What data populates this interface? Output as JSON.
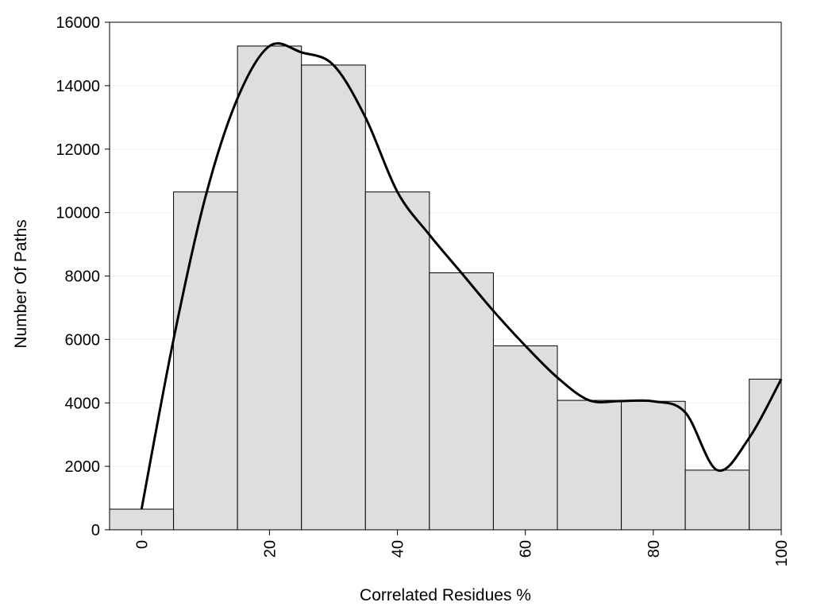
{
  "chart_data": {
    "type": "bar",
    "xlabel": "Correlated Residues %",
    "ylabel": "Number Of Paths",
    "xlim": [
      -5,
      100
    ],
    "ylim": [
      0,
      16000
    ],
    "x_ticks": [
      0,
      20,
      40,
      60,
      80,
      100
    ],
    "y_ticks": [
      0,
      2000,
      4000,
      6000,
      8000,
      10000,
      12000,
      14000,
      16000
    ],
    "bin_width": 10,
    "x": [
      0,
      10,
      20,
      30,
      40,
      50,
      60,
      70,
      80,
      90,
      100
    ],
    "values": [
      650,
      10650,
      15250,
      14650,
      10650,
      8100,
      5800,
      4080,
      4050,
      1880,
      4750
    ],
    "grid": "horizontal dotted",
    "legend": "none",
    "smooth_curve": {
      "x": [
        0,
        5,
        10,
        15,
        20,
        25,
        30,
        35,
        40,
        45,
        50,
        55,
        60,
        65,
        70,
        75,
        80,
        85,
        90,
        95,
        100
      ],
      "y": [
        650,
        6000,
        10500,
        13600,
        15250,
        15050,
        14650,
        13000,
        10650,
        9300,
        8100,
        6900,
        5800,
        4800,
        4080,
        4060,
        4050,
        3700,
        1880,
        2900,
        4750
      ]
    },
    "colors": {
      "bar_fill": "#dedede",
      "bar_stroke": "#000000",
      "curve": "#000000",
      "grid": "#c8c8c8"
    }
  }
}
